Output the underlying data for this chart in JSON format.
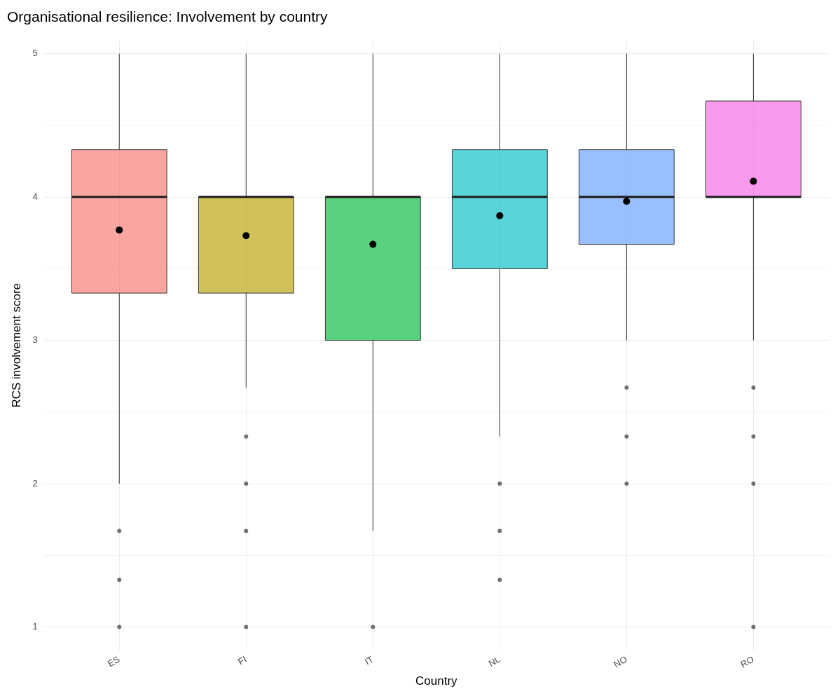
{
  "chart_data": {
    "type": "box",
    "title": "Organisational resilience: Involvement by country",
    "xlabel": "Country",
    "ylabel": "RCS involvement score",
    "categories": [
      "ES",
      "FI",
      "IT",
      "NL",
      "NO",
      "RO"
    ],
    "colors": [
      "#f8766d",
      "#b79f00",
      "#00ba38",
      "#00bfc4",
      "#619cff",
      "#f564e3"
    ],
    "boxes": [
      {
        "low": 2,
        "q1": 3.33,
        "median": 4,
        "q3": 4.33,
        "high": 5,
        "mean": 3.77,
        "outliers": [
          1.67,
          1.33,
          1
        ]
      },
      {
        "low": 2.67,
        "q1": 3.33,
        "median": 4,
        "q3": 4,
        "high": 5,
        "mean": 3.73,
        "outliers": [
          2.33,
          2,
          1.67,
          1
        ]
      },
      {
        "low": 1.67,
        "q1": 3,
        "median": 4,
        "q3": 4,
        "high": 5,
        "mean": 3.67,
        "outliers": [
          1
        ]
      },
      {
        "low": 2.33,
        "q1": 3.5,
        "median": 4,
        "q3": 4.33,
        "high": 5,
        "mean": 3.87,
        "outliers": [
          2,
          1.67,
          1.33
        ]
      },
      {
        "low": 3,
        "q1": 3.67,
        "median": 4,
        "q3": 4.33,
        "high": 5,
        "mean": 3.97,
        "outliers": [
          2.67,
          2.33,
          2
        ]
      },
      {
        "low": 3,
        "q1": 4,
        "median": 4,
        "q3": 4.67,
        "high": 5,
        "mean": 4.11,
        "outliers": [
          2.67,
          2.33,
          2,
          1
        ]
      }
    ],
    "ylim": [
      0.84,
      5.09
    ],
    "yticks": [
      1,
      {
        "value": 1.5,
        "label": null
      },
      2,
      {
        "value": 2.5,
        "label": null
      },
      3,
      {
        "value": 3.5,
        "label": null
      },
      4,
      {
        "value": 4.5,
        "label": null
      },
      5
    ],
    "grid": true,
    "legend": false
  }
}
